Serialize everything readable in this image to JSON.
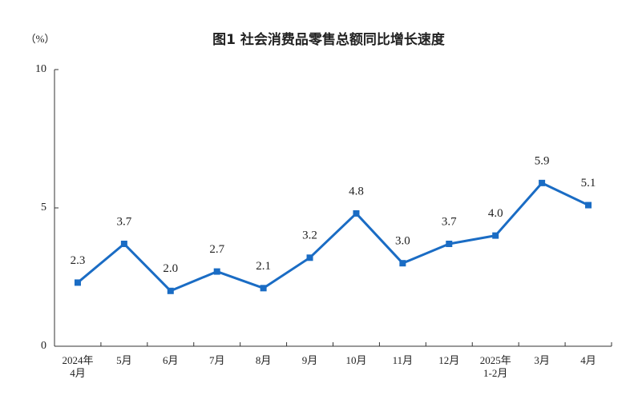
{
  "chart_data": {
    "type": "line",
    "title": "图1  社会消费品零售总额同比增长速度",
    "y_unit": "（%）",
    "categories": [
      "2024年\n4月",
      "5月",
      "6月",
      "7月",
      "8月",
      "9月",
      "10月",
      "11月",
      "12月",
      "2025年\n1-2月",
      "3月",
      "4月"
    ],
    "values": [
      2.3,
      3.7,
      2.0,
      2.7,
      2.1,
      3.2,
      4.8,
      3.0,
      3.7,
      4.0,
      5.9,
      5.1
    ],
    "value_labels": [
      "2.3",
      "3.7",
      "2.0",
      "2.7",
      "2.1",
      "3.2",
      "4.8",
      "3.0",
      "3.7",
      "4.0",
      "5.9",
      "5.1"
    ],
    "color": "#1a6cc4",
    "ylim": [
      0,
      10
    ],
    "yticks": [
      0,
      5,
      10
    ],
    "grid": false
  }
}
